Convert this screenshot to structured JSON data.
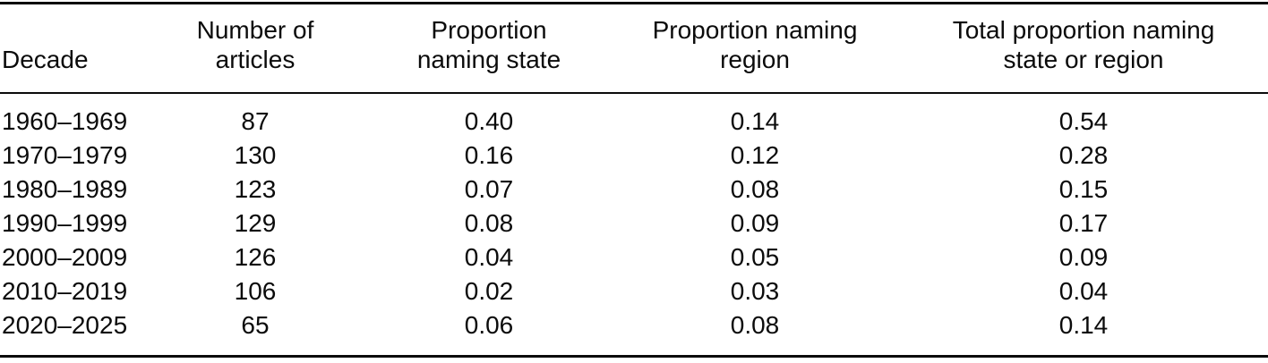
{
  "table": {
    "headers": [
      "Decade",
      "Number of\narticles",
      "Proportion\nnaming state",
      "Proportion naming\nregion",
      "Total proportion naming\nstate or region"
    ],
    "rows": [
      [
        "1960–1969",
        "87",
        "0.40",
        "0.14",
        "0.54"
      ],
      [
        "1970–1979",
        "130",
        "0.16",
        "0.12",
        "0.28"
      ],
      [
        "1980–1989",
        "123",
        "0.07",
        "0.08",
        "0.15"
      ],
      [
        "1990–1999",
        "129",
        "0.08",
        "0.09",
        "0.17"
      ],
      [
        "2000–2009",
        "126",
        "0.04",
        "0.05",
        "0.09"
      ],
      [
        "2010–2019",
        "106",
        "0.02",
        "0.03",
        "0.04"
      ],
      [
        "2020–2025",
        "65",
        "0.06",
        "0.08",
        "0.14"
      ]
    ]
  },
  "chart_data": {
    "type": "table",
    "columns": [
      "Decade",
      "Number of articles",
      "Proportion naming state",
      "Proportion naming region",
      "Total proportion naming state or region"
    ],
    "rows": [
      [
        "1960–1969",
        87,
        0.4,
        0.14,
        0.54
      ],
      [
        "1970–1979",
        130,
        0.16,
        0.12,
        0.28
      ],
      [
        "1980–1989",
        123,
        0.07,
        0.08,
        0.15
      ],
      [
        "1990–1999",
        129,
        0.08,
        0.09,
        0.17
      ],
      [
        "2000–2009",
        126,
        0.04,
        0.05,
        0.09
      ],
      [
        "2010–2019",
        106,
        0.02,
        0.03,
        0.04
      ],
      [
        "2020–2025",
        65,
        0.06,
        0.08,
        0.14
      ]
    ]
  }
}
